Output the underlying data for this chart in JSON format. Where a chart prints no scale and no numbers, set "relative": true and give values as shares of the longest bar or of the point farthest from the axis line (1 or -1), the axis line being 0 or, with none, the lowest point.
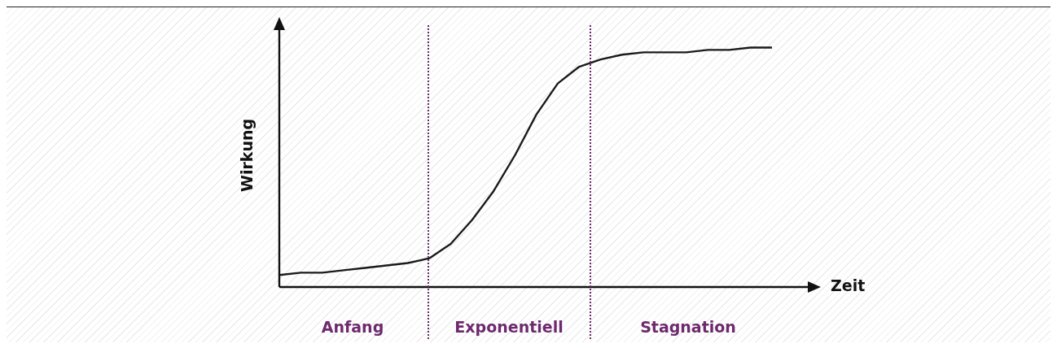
{
  "chart_data": {
    "type": "line",
    "relative": true,
    "xlabel": "Zeit",
    "ylabel": "Wirkung",
    "categories": [
      null,
      null,
      null,
      null,
      null,
      null,
      null,
      null,
      null,
      null,
      null,
      null,
      null,
      null,
      null,
      null,
      null,
      null,
      null,
      null,
      null,
      null,
      null,
      null
    ],
    "series": [
      {
        "color": "#1a1a1a",
        "values": [
          0.05,
          0.06,
          0.06,
          0.07,
          0.08,
          0.09,
          0.1,
          0.12,
          0.18,
          0.28,
          0.4,
          0.55,
          0.72,
          0.85,
          0.92,
          0.95,
          0.97,
          0.98,
          0.98,
          0.98,
          0.99,
          0.99,
          1.0,
          1.0
        ]
      }
    ],
    "annotations": [
      "Anfang",
      "Exponentiell",
      "Stagnation"
    ],
    "line_style": "solid"
  }
}
